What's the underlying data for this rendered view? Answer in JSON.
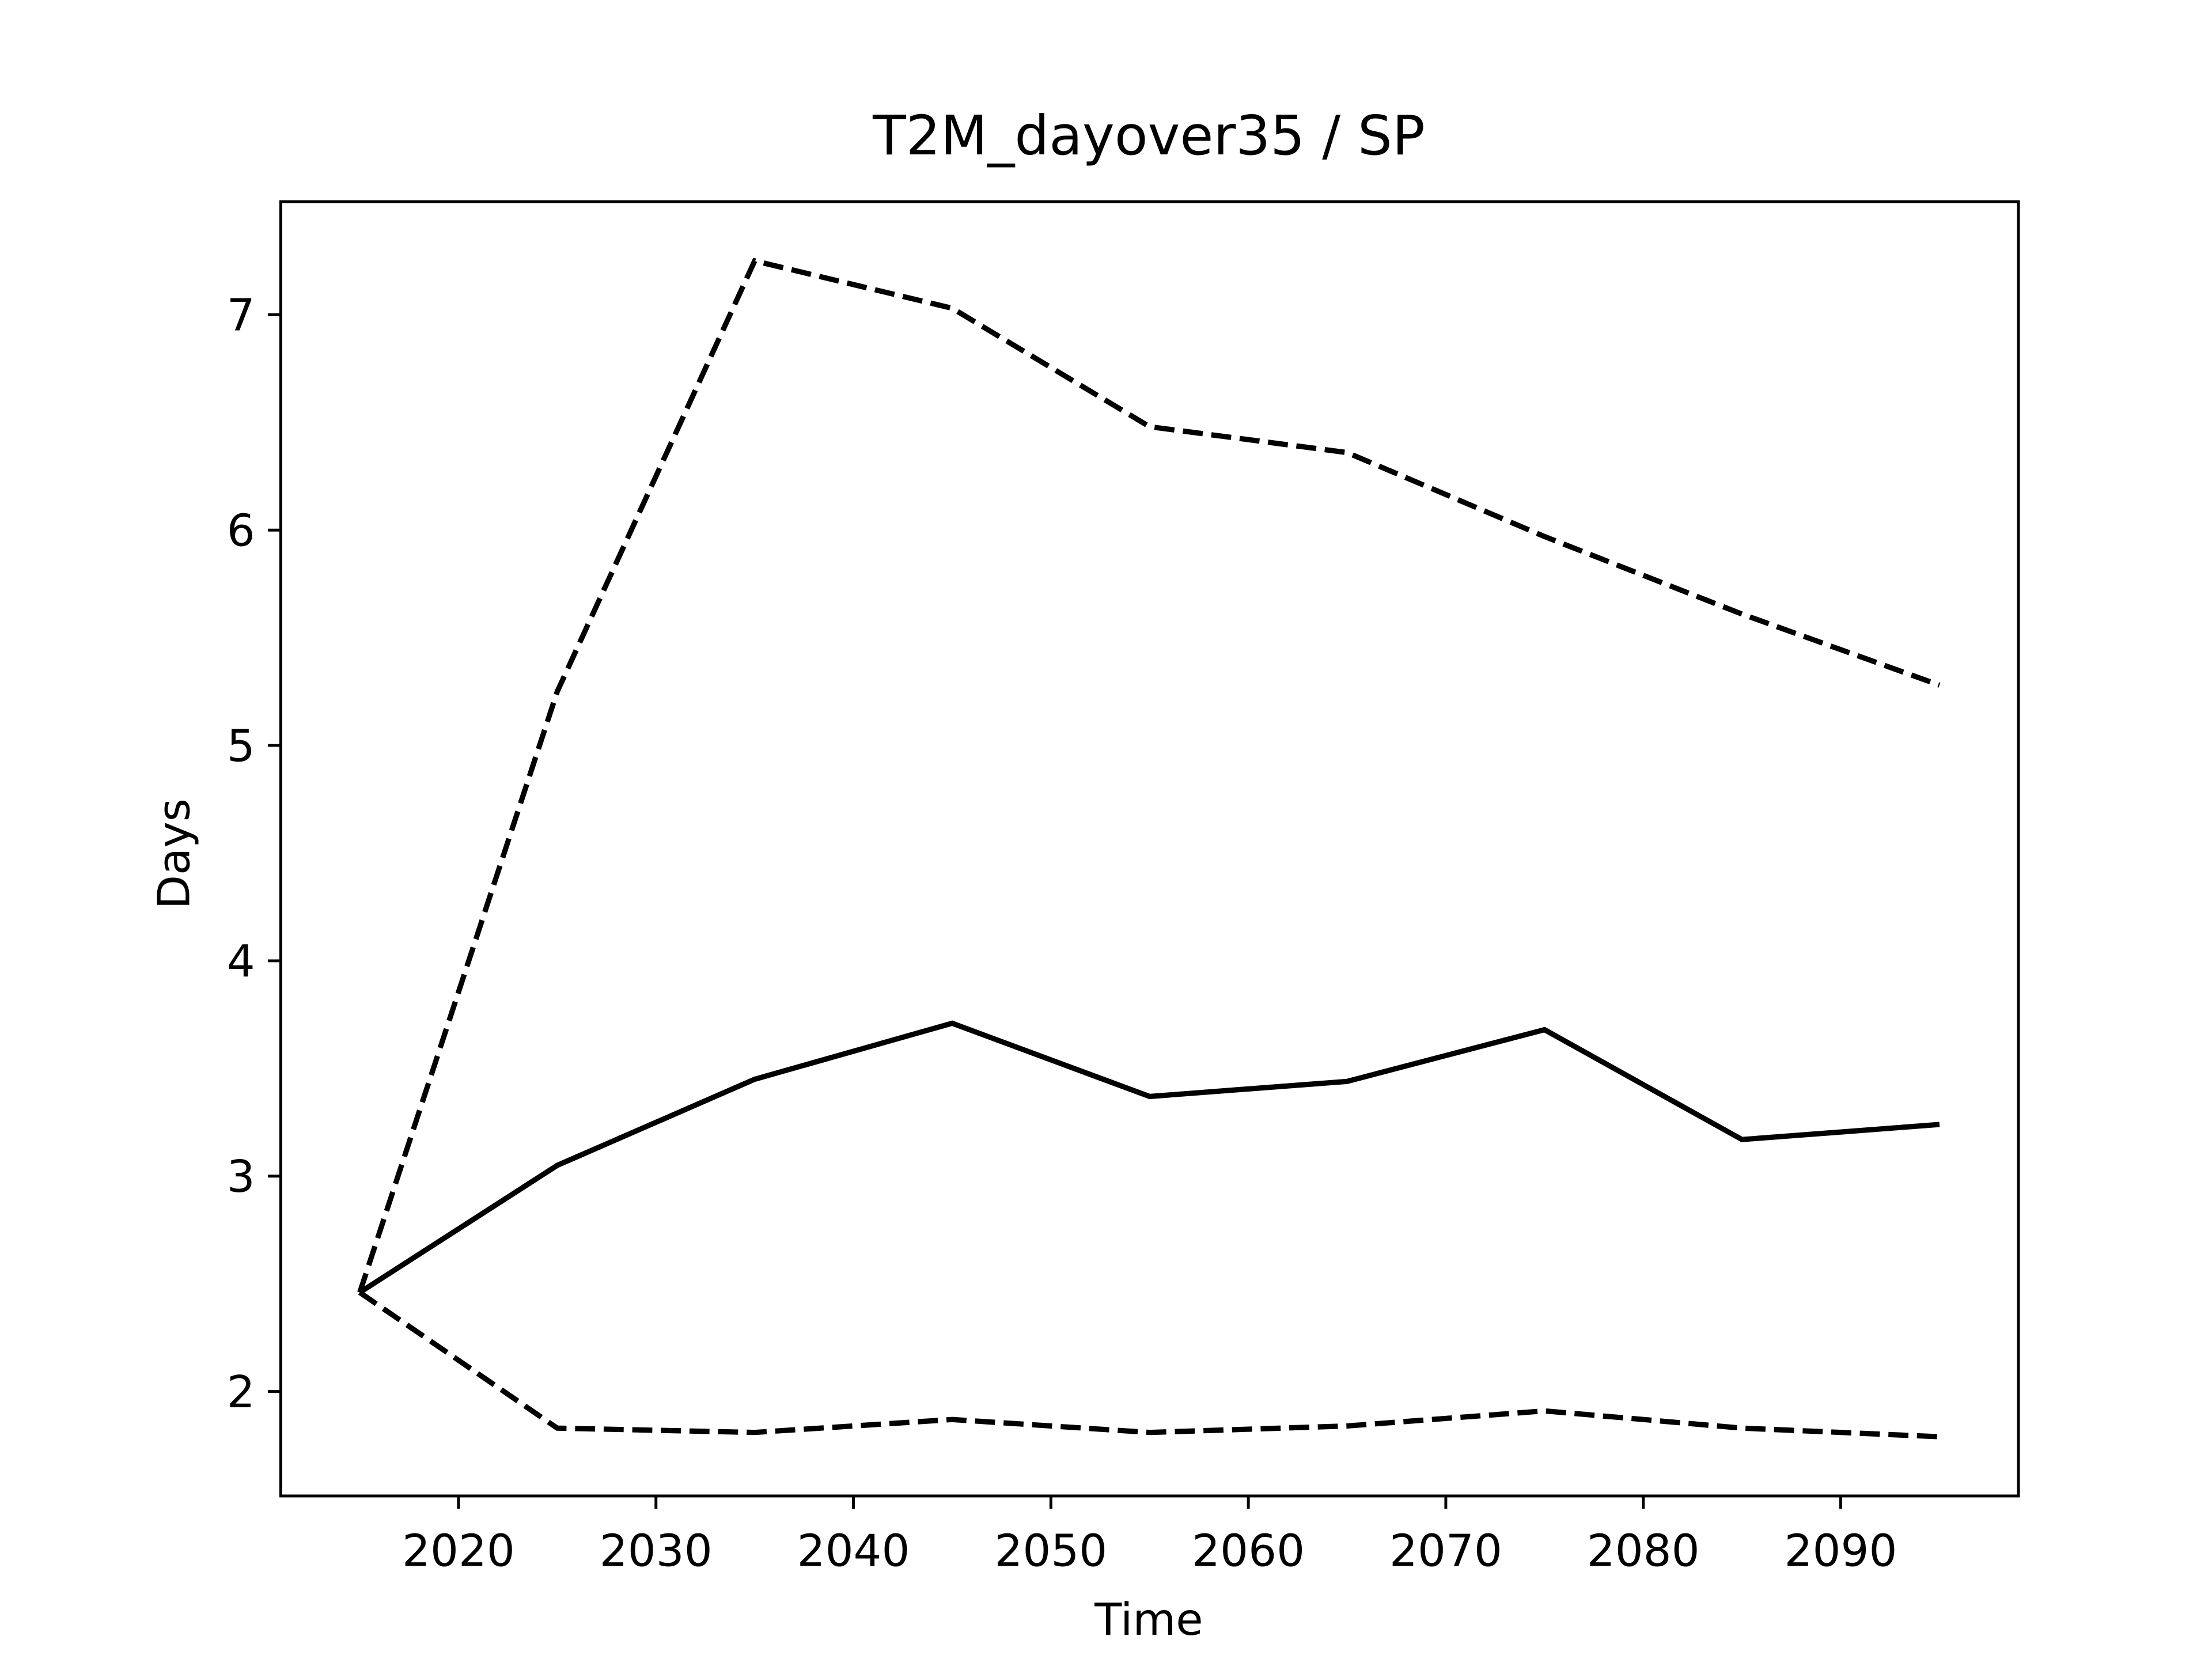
{
  "chart_data": {
    "type": "line",
    "title": "T2M_dayover35 / SP",
    "x_label": "Time",
    "y_label": "Days",
    "x": [
      2015,
      2025,
      2035,
      2045,
      2055,
      2065,
      2075,
      2085,
      2095
    ],
    "series": [
      {
        "color": "#000000",
        "linestyle": "solid",
        "values": [
          2.46,
          3.05,
          3.45,
          3.71,
          3.37,
          3.44,
          3.68,
          3.17,
          3.24
        ]
      },
      {
        "color": "#000000",
        "linestyle": "dashed",
        "values": [
          2.46,
          5.25,
          7.25,
          7.03,
          6.48,
          6.36,
          5.97,
          5.61,
          5.28
        ]
      },
      {
        "color": "#000000",
        "linestyle": "dashed",
        "values": [
          2.46,
          1.83,
          1.81,
          1.87,
          1.81,
          1.84,
          1.91,
          1.83,
          1.79
        ]
      }
    ],
    "xlim": [
      2011,
      2099
    ],
    "xticks": [
      2020,
      2030,
      2040,
      2050,
      2060,
      2070,
      2080,
      2090
    ],
    "ylim": [
      1.515,
      7.525
    ],
    "yticks": [
      2,
      3,
      4,
      5,
      6,
      7
    ],
    "grid": false
  }
}
